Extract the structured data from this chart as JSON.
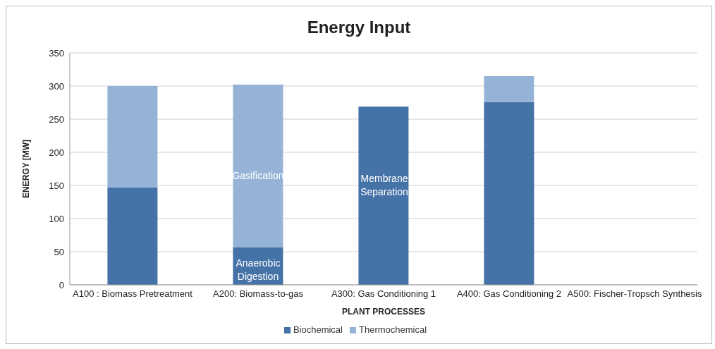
{
  "chart_data": {
    "type": "bar",
    "title": "Energy Input",
    "xlabel": "PLANT PROCESSES",
    "ylabel": "ENERGY [MW]",
    "categories": [
      "A100 : Biomass Pretreatment",
      "A200: Biomass-to-gas",
      "A300: Gas Conditioning 1",
      "A400: Gas Conditioning 2",
      "A500: Fischer-Tropsch Synthesis"
    ],
    "series": [
      {
        "name": "Biochemical",
        "color": "#4572a7",
        "values": [
          147,
          57,
          269,
          276,
          null
        ]
      },
      {
        "name": "Thermochemical",
        "color": "#95b3d7",
        "values": [
          153,
          245,
          null,
          39,
          null
        ]
      }
    ],
    "stacked": true,
    "ylim": [
      0,
      350
    ],
    "yticks": [
      0,
      50,
      100,
      150,
      200,
      250,
      300,
      350
    ],
    "grid": "y",
    "legend": "bottom",
    "annotations": [
      "Gasification",
      "Anaerobic Digestion",
      "Membrane Separation"
    ]
  }
}
